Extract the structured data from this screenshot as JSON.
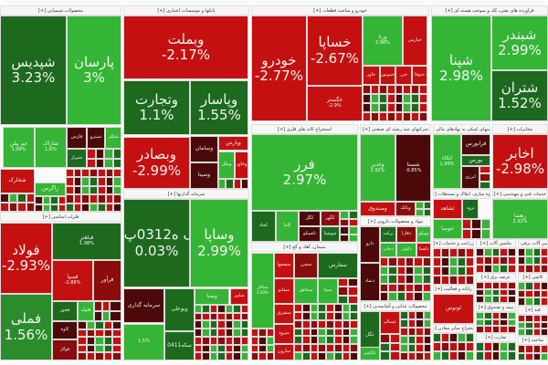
{
  "palette": {
    "lg": "#35b535",
    "g": "#2a8c2a",
    "dg": "#1d6a1f",
    "r": "#c41010",
    "dr": "#8a0c0c",
    "m": "#4c0909"
  },
  "sectors": [
    {
      "label": "محصولات شیمیایی [+]"
    },
    {
      "label": "بانکها و موسسات اعتباری [+]"
    },
    {
      "label": "خودرو و ساخت قطعات [+]"
    },
    {
      "label": "فراورده های نفتی، کک و سوخت هسته ای [+]"
    },
    {
      "label": "استخراج کانه های فلزی [+]"
    },
    {
      "label": "شرکتهای چند رشته ای صنعتی [+]"
    },
    {
      "label": "فعالیتهای کمکی به نهادهای مالی [+]"
    },
    {
      "label": "مخابرات [+]"
    },
    {
      "label": "فلزات اساسی [+]"
    },
    {
      "label": "سرمایه گذاریها [+]"
    },
    {
      "label": "سیمان، آهک و گچ [+]"
    },
    {
      "label": "مواد و محصولات دارویی [+]"
    },
    {
      "label": "انبوه سازی، املاک و مستغلات [+]"
    },
    {
      "label": "خدمات فنی و مهندسی [+]"
    },
    {
      "label": "محصولات غذایی و آشامیدنی [+]"
    },
    {
      "label": "زراعت و خدمات [+]"
    },
    {
      "label": "ماشین آلات [+]"
    },
    {
      "label": "ماشین آلات برقی [+]"
    },
    {
      "label": "رایانه و فعالیت [+]"
    },
    {
      "label": "عرضه برق [+]"
    },
    {
      "label": "کاشی [+]"
    },
    {
      "label": "بیمه و صندوق [+]"
    },
    {
      "label": "قند [+]"
    },
    {
      "label": "استخراج سایر معادن [+]"
    },
    {
      "label": "تجارت [+]"
    },
    {
      "label": "ساخت [+]"
    }
  ],
  "tiles": [
    {
      "symbol": "شپدیس",
      "change": "3.23%",
      "color": "dg"
    },
    {
      "symbol": "پارسان",
      "change": "3%",
      "color": "lg"
    },
    {
      "symbol": "جم پیلن",
      "change": "1.99%",
      "color": "lg"
    },
    {
      "symbol": "شاراک",
      "change": "1.6%",
      "color": "lg"
    },
    {
      "symbol": "فارس",
      "change": "",
      "color": "m"
    },
    {
      "symbol": "شپترو",
      "change": "",
      "color": "m"
    },
    {
      "symbol": "شکلر",
      "change": "",
      "color": "lg"
    },
    {
      "symbol": "شیراز",
      "change": "",
      "color": "dg"
    },
    {
      "symbol": "شخارک",
      "change": "",
      "color": "r"
    },
    {
      "symbol": "زاگرس",
      "change": "",
      "color": "lg"
    },
    {
      "symbol": "وبملت",
      "change": "-2.17%",
      "color": "r"
    },
    {
      "symbol": "وتجارت",
      "change": "1.1%",
      "color": "dg"
    },
    {
      "symbol": "وپاسار",
      "change": "1.55%",
      "color": "dg"
    },
    {
      "symbol": "وبصادر",
      "change": "-2.99%",
      "color": "r"
    },
    {
      "symbol": "وسامان",
      "change": "",
      "color": "m"
    },
    {
      "symbol": "وپارس",
      "change": "",
      "color": "r"
    },
    {
      "symbol": "وملل",
      "change": "",
      "color": "lg"
    },
    {
      "symbol": "وخاور",
      "change": "",
      "color": "r"
    },
    {
      "symbol": "وسینا",
      "change": "",
      "color": "m"
    },
    {
      "symbol": "سک ه0312پ01",
      "change": "0.03%",
      "color": "dg"
    },
    {
      "symbol": "وساپا",
      "change": "2.99%",
      "color": "lg"
    },
    {
      "symbol": "سرمایه گذاری",
      "change": "",
      "color": "m"
    },
    {
      "symbol": "وبوعلی",
      "change": "",
      "color": "dg"
    },
    {
      "symbol": "وصنا",
      "change": "",
      "color": "lg"
    },
    {
      "symbol": "ساپیر",
      "change": "",
      "color": "r"
    },
    {
      "symbol": "",
      "change": "1.5%",
      "color": "lg"
    },
    {
      "symbol": "سکه0411",
      "change": "",
      "color": "dg"
    },
    {
      "symbol": "خودرو",
      "change": "-2.77%",
      "color": "r"
    },
    {
      "symbol": "خساپا",
      "change": "-2.67%",
      "color": "r"
    },
    {
      "symbol": "خگستر",
      "change": "-2.9%",
      "color": "r"
    },
    {
      "symbol": "ورنا",
      "change": "2.98%",
      "color": "lg"
    },
    {
      "symbol": "خپارس",
      "change": "",
      "color": "r"
    },
    {
      "symbol": "خاور",
      "change": "",
      "color": "r"
    },
    {
      "symbol": "خموتور",
      "change": "",
      "color": "r"
    },
    {
      "symbol": "خزر",
      "change": "",
      "color": "r"
    },
    {
      "symbol": "ختوقا",
      "change": "",
      "color": "r"
    },
    {
      "symbol": "شپنا",
      "change": "2.98%",
      "color": "lg"
    },
    {
      "symbol": "شبندر",
      "change": "2.99%",
      "color": "lg"
    },
    {
      "symbol": "شتران",
      "change": "1.52%",
      "color": "dg"
    },
    {
      "symbol": "فرر",
      "change": "2.97%",
      "color": "lg"
    },
    {
      "symbol": "کچاد",
      "change": "",
      "color": "dg"
    },
    {
      "symbol": "کاما",
      "change": "",
      "color": "lg"
    },
    {
      "symbol": "کگل",
      "change": "",
      "color": "m"
    },
    {
      "symbol": "کگهر",
      "change": "",
      "color": "dr"
    },
    {
      "symbol": "تاصیکو",
      "change": "",
      "color": "m"
    },
    {
      "symbol": "شوشتا",
      "change": "",
      "color": "dg"
    },
    {
      "symbol": "وغدیر",
      "change": "2.92%",
      "color": "lg"
    },
    {
      "symbol": "شستا",
      "change": "-0.85%",
      "color": "m"
    },
    {
      "symbol": "وصندوق",
      "change": "",
      "color": "r"
    },
    {
      "symbol": "وبانک",
      "change": "",
      "color": "dr"
    },
    {
      "symbol": "دارو",
      "change": "",
      "color": "m"
    },
    {
      "symbol": "برکت",
      "change": "",
      "color": "dg"
    },
    {
      "symbol": "دفارا",
      "change": "",
      "color": "dr"
    },
    {
      "symbol": "تیپیکو",
      "change": "",
      "color": "lg"
    },
    {
      "symbol": "دتماد",
      "change": "",
      "color": "m"
    },
    {
      "symbol": "دجابر",
      "change": "",
      "color": "lg"
    },
    {
      "symbol": "دکوثر",
      "change": "",
      "color": "lg"
    },
    {
      "symbol": "دلقما",
      "change": "",
      "color": "r"
    },
    {
      "symbol": "غگل",
      "change": "",
      "color": "dg"
    },
    {
      "symbol": "غسالم",
      "change": "",
      "color": "r"
    },
    {
      "symbol": "عالیس",
      "change": "",
      "color": "lg"
    },
    {
      "symbol": "اتکاء",
      "change": "1.99%",
      "color": "lg"
    },
    {
      "symbol": "فرابورس",
      "change": "",
      "color": "m"
    },
    {
      "symbol": "بورس",
      "change": "",
      "color": "dg"
    },
    {
      "symbol": "انرژی",
      "change": "",
      "color": "m"
    },
    {
      "symbol": "اخابر",
      "change": "-2.98%",
      "color": "r"
    },
    {
      "symbol": "ثشاهد",
      "change": "",
      "color": "r"
    },
    {
      "symbol": "ثرود",
      "change": "",
      "color": "dg"
    },
    {
      "symbol": "ثنوسا",
      "change": "",
      "color": "lg"
    },
    {
      "symbol": "رهنما",
      "change": "2.92%",
      "color": "lg"
    },
    {
      "symbol": "سباقر",
      "change": "2.93%",
      "color": "lg"
    },
    {
      "symbol": "سصفها",
      "change": "",
      "color": "r"
    },
    {
      "symbol": "سخزر",
      "change": "",
      "color": "dr"
    },
    {
      "symbol": "سفارس",
      "change": "",
      "color": "dg"
    },
    {
      "symbol": "سفانو",
      "change": "",
      "color": "r"
    },
    {
      "symbol": "سخاش",
      "change": "",
      "color": "lg"
    },
    {
      "symbol": "سیتا",
      "change": "",
      "color": "lg"
    },
    {
      "symbol": "سشرق",
      "change": "",
      "color": "r"
    },
    {
      "symbol": "سرود",
      "change": "",
      "color": "r"
    },
    {
      "symbol": "سارون",
      "change": "",
      "color": "r"
    },
    {
      "symbol": "فولاد",
      "change": "-2.93%",
      "color": "r"
    },
    {
      "symbol": "فملی",
      "change": "1.56%",
      "color": "g"
    },
    {
      "symbol": "فباهنر",
      "change": "1.98%",
      "color": "dg"
    },
    {
      "symbol": "فسپا",
      "change": "-2.88%",
      "color": "r"
    },
    {
      "symbol": "فرآور",
      "change": "",
      "color": "dr"
    },
    {
      "symbol": "فخوز",
      "change": "",
      "color": "dg"
    },
    {
      "symbol": "فلوله",
      "change": "",
      "color": "lg"
    },
    {
      "symbol": "کاوه",
      "change": "",
      "color": "m"
    },
    {
      "symbol": "فولاژ",
      "change": "",
      "color": "dr"
    },
    {
      "symbol": "لوتوس",
      "change": "",
      "color": "r"
    }
  ]
}
